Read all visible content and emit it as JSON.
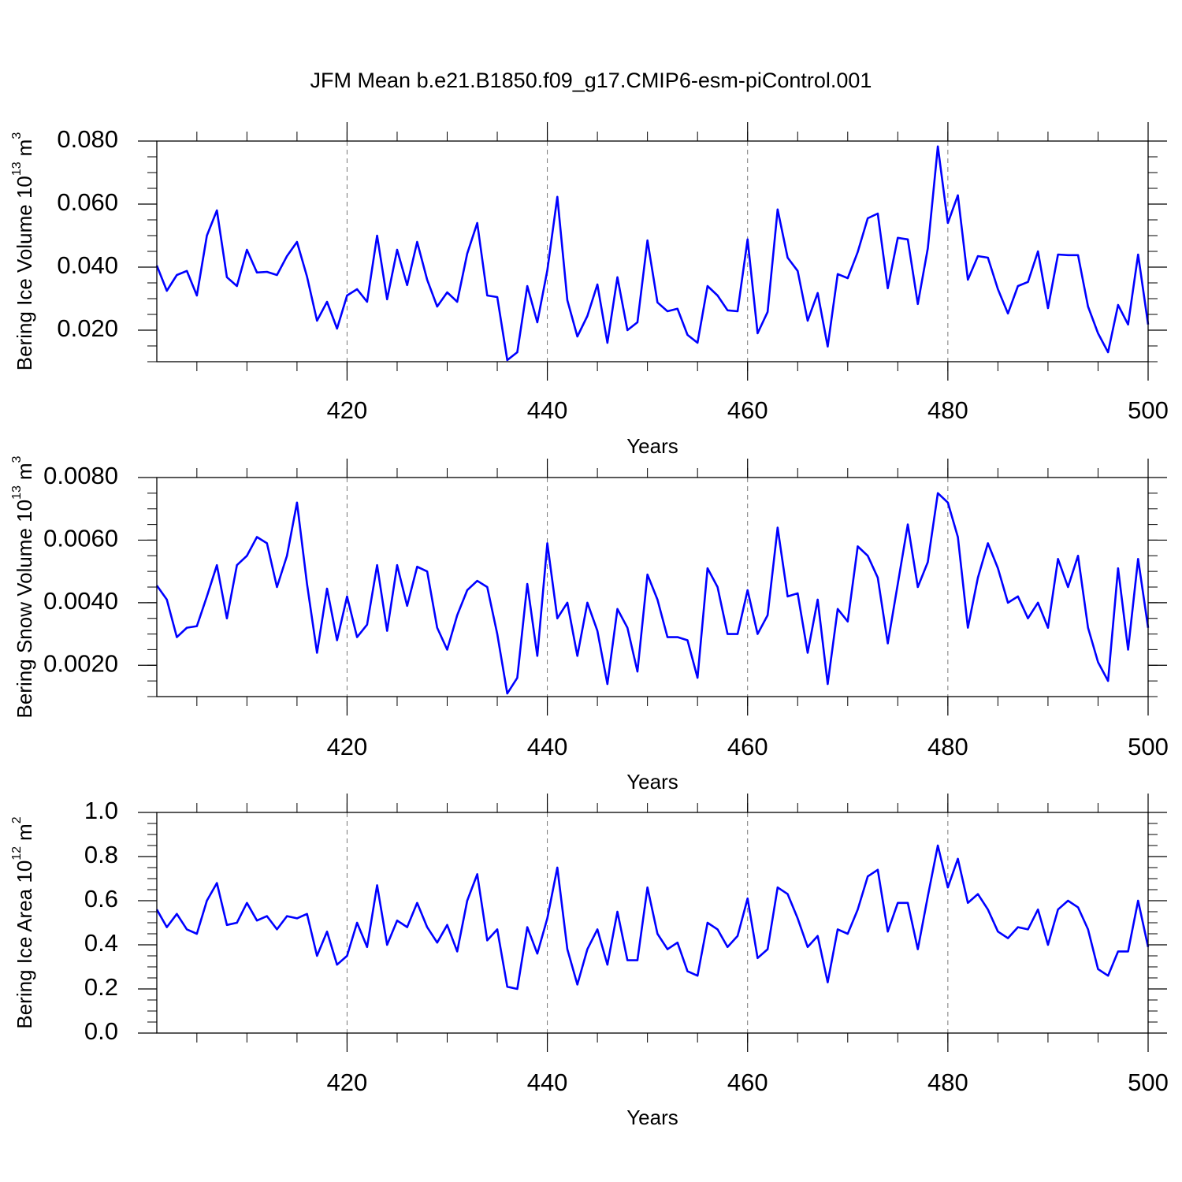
{
  "chart_data": [
    {
      "type": "line",
      "title": "JFM Mean b.e21.B1850.f09_g17.CMIP6-esm-piControl.001",
      "ylabel": "Bering Ice Volume 10",
      "ylabel_exponent": "13",
      "ylabel_unit": "m",
      "ylabel_unit_exponent": "3",
      "xlabel": "Years",
      "xlim": [
        401,
        500
      ],
      "xticks": [
        420,
        440,
        460,
        480,
        500
      ],
      "xgrid": true,
      "ylim": [
        0.01,
        0.08
      ],
      "yticks": [
        {
          "value": 0.02,
          "label": "0.020"
        },
        {
          "value": 0.04,
          "label": "0.040"
        },
        {
          "value": 0.06,
          "label": "0.060"
        },
        {
          "value": 0.08,
          "label": "0.080"
        }
      ],
      "x": [
        401,
        402,
        403,
        404,
        405,
        406,
        407,
        408,
        409,
        410,
        411,
        412,
        413,
        414,
        415,
        416,
        417,
        418,
        419,
        420,
        421,
        422,
        423,
        424,
        425,
        426,
        427,
        428,
        429,
        430,
        431,
        432,
        433,
        434,
        435,
        436,
        437,
        438,
        439,
        440,
        441,
        442,
        443,
        444,
        445,
        446,
        447,
        448,
        449,
        450,
        451,
        452,
        453,
        454,
        455,
        456,
        457,
        458,
        459,
        460,
        461,
        462,
        463,
        464,
        465,
        466,
        467,
        468,
        469,
        470,
        471,
        472,
        473,
        474,
        475,
        476,
        477,
        478,
        479,
        480,
        481,
        482,
        483,
        484,
        485,
        486,
        487,
        488,
        489,
        490,
        491,
        492,
        493,
        494,
        495,
        496,
        497,
        498,
        499,
        500
      ],
      "series": [
        {
          "color": "#0000ff",
          "values": [
            0.0405,
            0.0325,
            0.0375,
            0.0388,
            0.031,
            0.05,
            0.058,
            0.0368,
            0.034,
            0.0455,
            0.0383,
            0.0385,
            0.0375,
            0.0435,
            0.048,
            0.037,
            0.023,
            0.029,
            0.0205,
            0.031,
            0.033,
            0.029,
            0.05,
            0.0298,
            0.0455,
            0.0343,
            0.048,
            0.036,
            0.0275,
            0.032,
            0.029,
            0.0443,
            0.054,
            0.031,
            0.0305,
            0.0105,
            0.013,
            0.034,
            0.0225,
            0.039,
            0.0623,
            0.0295,
            0.018,
            0.0245,
            0.0345,
            0.016,
            0.0368,
            0.02,
            0.0225,
            0.0485,
            0.0288,
            0.026,
            0.0268,
            0.0185,
            0.016,
            0.034,
            0.031,
            0.0263,
            0.026,
            0.0488,
            0.019,
            0.0258,
            0.0583,
            0.043,
            0.0388,
            0.023,
            0.0318,
            0.0148,
            0.0378,
            0.0365,
            0.0448,
            0.0555,
            0.057,
            0.0333,
            0.0493,
            0.0488,
            0.0283,
            0.046,
            0.0783,
            0.054,
            0.0628,
            0.036,
            0.0435,
            0.043,
            0.033,
            0.0253,
            0.034,
            0.0353,
            0.045,
            0.027,
            0.044,
            0.0438,
            0.0438,
            0.0275,
            0.019,
            0.013,
            0.028,
            0.0218,
            0.044,
            0.0218
          ]
        }
      ]
    },
    {
      "type": "line",
      "ylabel": "Bering Snow Volume 10",
      "ylabel_exponent": "13",
      "ylabel_unit": "m",
      "ylabel_unit_exponent": "3",
      "xlabel": "Years",
      "xlim": [
        401,
        500
      ],
      "xticks": [
        420,
        440,
        460,
        480,
        500
      ],
      "xgrid": true,
      "ylim": [
        0.001,
        0.008
      ],
      "yticks": [
        {
          "value": 0.002,
          "label": "0.0020"
        },
        {
          "value": 0.004,
          "label": "0.0040"
        },
        {
          "value": 0.006,
          "label": "0.0060"
        },
        {
          "value": 0.008,
          "label": "0.0080"
        }
      ],
      "x": [
        401,
        402,
        403,
        404,
        405,
        406,
        407,
        408,
        409,
        410,
        411,
        412,
        413,
        414,
        415,
        416,
        417,
        418,
        419,
        420,
        421,
        422,
        423,
        424,
        425,
        426,
        427,
        428,
        429,
        430,
        431,
        432,
        433,
        434,
        435,
        436,
        437,
        438,
        439,
        440,
        441,
        442,
        443,
        444,
        445,
        446,
        447,
        448,
        449,
        450,
        451,
        452,
        453,
        454,
        455,
        456,
        457,
        458,
        459,
        460,
        461,
        462,
        463,
        464,
        465,
        466,
        467,
        468,
        469,
        470,
        471,
        472,
        473,
        474,
        475,
        476,
        477,
        478,
        479,
        480,
        481,
        482,
        483,
        484,
        485,
        486,
        487,
        488,
        489,
        490,
        491,
        492,
        493,
        494,
        495,
        496,
        497,
        498,
        499,
        500
      ],
      "series": [
        {
          "color": "#0000ff",
          "values": [
            0.00455,
            0.0041,
            0.0029,
            0.0032,
            0.00325,
            0.0042,
            0.0052,
            0.0035,
            0.0052,
            0.0055,
            0.0061,
            0.0059,
            0.0045,
            0.0055,
            0.0072,
            0.0046,
            0.0024,
            0.00445,
            0.0028,
            0.0042,
            0.0029,
            0.0033,
            0.0052,
            0.0031,
            0.0052,
            0.0039,
            0.00515,
            0.005,
            0.0032,
            0.0025,
            0.0036,
            0.0044,
            0.0047,
            0.0045,
            0.003,
            0.0011,
            0.0016,
            0.0046,
            0.0023,
            0.0059,
            0.0035,
            0.004,
            0.0023,
            0.004,
            0.0031,
            0.0014,
            0.0038,
            0.0032,
            0.0018,
            0.0049,
            0.0041,
            0.0029,
            0.0029,
            0.0028,
            0.0016,
            0.0051,
            0.0045,
            0.003,
            0.003,
            0.0044,
            0.003,
            0.0036,
            0.0064,
            0.0042,
            0.0043,
            0.0024,
            0.0041,
            0.0014,
            0.0038,
            0.0034,
            0.0058,
            0.0055,
            0.0048,
            0.0027,
            0.0046,
            0.0065,
            0.0045,
            0.0053,
            0.0075,
            0.0072,
            0.0061,
            0.0032,
            0.0048,
            0.0059,
            0.0051,
            0.004,
            0.0042,
            0.0035,
            0.004,
            0.0032,
            0.0054,
            0.0045,
            0.0055,
            0.0032,
            0.0021,
            0.0015,
            0.0051,
            0.0025,
            0.0054,
            0.0032
          ]
        }
      ]
    },
    {
      "type": "line",
      "ylabel": "Bering Ice Area 10",
      "ylabel_exponent": "12",
      "ylabel_unit": "m",
      "ylabel_unit_exponent": "2",
      "xlabel": "Years",
      "xlim": [
        401,
        500
      ],
      "xticks": [
        420,
        440,
        460,
        480,
        500
      ],
      "xgrid": true,
      "ylim": [
        0,
        1
      ],
      "yticks": [
        {
          "value": 0,
          "label": "0.0"
        },
        0.2,
        0.4,
        0.6,
        0.8,
        {
          "value": 1,
          "label": "1.0"
        }
      ],
      "x": [
        401,
        402,
        403,
        404,
        405,
        406,
        407,
        408,
        409,
        410,
        411,
        412,
        413,
        414,
        415,
        416,
        417,
        418,
        419,
        420,
        421,
        422,
        423,
        424,
        425,
        426,
        427,
        428,
        429,
        430,
        431,
        432,
        433,
        434,
        435,
        436,
        437,
        438,
        439,
        440,
        441,
        442,
        443,
        444,
        445,
        446,
        447,
        448,
        449,
        450,
        451,
        452,
        453,
        454,
        455,
        456,
        457,
        458,
        459,
        460,
        461,
        462,
        463,
        464,
        465,
        466,
        467,
        468,
        469,
        470,
        471,
        472,
        473,
        474,
        475,
        476,
        477,
        478,
        479,
        480,
        481,
        482,
        483,
        484,
        485,
        486,
        487,
        488,
        489,
        490,
        491,
        492,
        493,
        494,
        495,
        496,
        497,
        498,
        499,
        500
      ],
      "series": [
        {
          "color": "#0000ff",
          "values": [
            0.56,
            0.48,
            0.54,
            0.47,
            0.45,
            0.6,
            0.68,
            0.49,
            0.5,
            0.59,
            0.51,
            0.53,
            0.47,
            0.53,
            0.52,
            0.54,
            0.35,
            0.46,
            0.31,
            0.35,
            0.5,
            0.39,
            0.67,
            0.4,
            0.51,
            0.48,
            0.59,
            0.48,
            0.41,
            0.49,
            0.37,
            0.6,
            0.72,
            0.42,
            0.47,
            0.21,
            0.2,
            0.48,
            0.36,
            0.52,
            0.75,
            0.38,
            0.22,
            0.38,
            0.47,
            0.31,
            0.55,
            0.33,
            0.33,
            0.66,
            0.45,
            0.38,
            0.41,
            0.28,
            0.26,
            0.5,
            0.47,
            0.39,
            0.44,
            0.61,
            0.34,
            0.38,
            0.66,
            0.63,
            0.52,
            0.39,
            0.44,
            0.23,
            0.47,
            0.45,
            0.56,
            0.71,
            0.74,
            0.46,
            0.59,
            0.59,
            0.38,
            0.62,
            0.85,
            0.66,
            0.79,
            0.59,
            0.63,
            0.56,
            0.46,
            0.43,
            0.48,
            0.47,
            0.56,
            0.4,
            0.56,
            0.6,
            0.57,
            0.47,
            0.29,
            0.26,
            0.37,
            0.37,
            0.6,
            0.39
          ]
        }
      ]
    }
  ]
}
